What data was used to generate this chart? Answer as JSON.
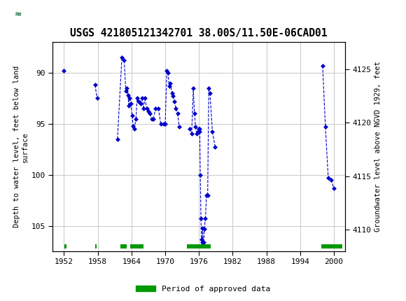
{
  "title": "USGS 421805121342701 38.00S/11.50E-06CAD01",
  "ylabel_left": "Depth to water level, feet below land\nsurface",
  "ylabel_right": "Groundwater level above NGVD 1929, feet",
  "xlim": [
    1950,
    2002
  ],
  "ylim_left": [
    107.5,
    87.0
  ],
  "ylim_right": [
    4108.0,
    4127.5
  ],
  "xticks": [
    1952,
    1958,
    1964,
    1970,
    1976,
    1982,
    1988,
    1994,
    2000
  ],
  "yticks_left": [
    90,
    95,
    100,
    105
  ],
  "yticks_right": [
    4125,
    4120,
    4115,
    4110
  ],
  "data_color": "#0000cc",
  "header_bg": "#006633",
  "plot_bg": "#ffffff",
  "grid_color": "#c8c8c8",
  "legend_label": "Period of approved data",
  "legend_color": "#009900",
  "connect_threshold": 1.2,
  "data_points": [
    [
      1952.0,
      89.8
    ],
    [
      1957.5,
      91.2
    ],
    [
      1957.9,
      92.5
    ],
    [
      1961.5,
      96.5
    ],
    [
      1962.3,
      88.5
    ],
    [
      1962.7,
      88.8
    ],
    [
      1963.0,
      91.8
    ],
    [
      1963.2,
      91.5
    ],
    [
      1963.4,
      92.2
    ],
    [
      1963.5,
      93.2
    ],
    [
      1963.7,
      92.5
    ],
    [
      1963.9,
      93.0
    ],
    [
      1964.1,
      94.2
    ],
    [
      1964.3,
      95.2
    ],
    [
      1964.5,
      95.5
    ],
    [
      1964.8,
      94.5
    ],
    [
      1965.0,
      92.5
    ],
    [
      1965.3,
      92.8
    ],
    [
      1965.6,
      93.0
    ],
    [
      1965.9,
      92.5
    ],
    [
      1966.1,
      93.5
    ],
    [
      1966.4,
      92.5
    ],
    [
      1966.7,
      93.5
    ],
    [
      1967.0,
      93.8
    ],
    [
      1967.3,
      94.0
    ],
    [
      1967.6,
      94.5
    ],
    [
      1967.9,
      94.5
    ],
    [
      1968.3,
      93.5
    ],
    [
      1968.8,
      93.5
    ],
    [
      1969.2,
      95.0
    ],
    [
      1969.7,
      95.0
    ],
    [
      1970.0,
      95.0
    ],
    [
      1970.3,
      89.8
    ],
    [
      1970.5,
      90.0
    ],
    [
      1970.7,
      91.3
    ],
    [
      1970.9,
      91.0
    ],
    [
      1971.2,
      92.0
    ],
    [
      1971.4,
      92.3
    ],
    [
      1971.6,
      92.8
    ],
    [
      1971.9,
      93.5
    ],
    [
      1972.2,
      94.0
    ],
    [
      1972.5,
      95.3
    ],
    [
      1974.3,
      95.5
    ],
    [
      1974.7,
      96.0
    ],
    [
      1975.0,
      91.5
    ],
    [
      1975.2,
      94.0
    ],
    [
      1975.4,
      95.3
    ],
    [
      1975.6,
      96.0
    ],
    [
      1975.8,
      95.8
    ],
    [
      1975.95,
      95.5
    ],
    [
      1976.05,
      95.5
    ],
    [
      1976.15,
      95.8
    ],
    [
      1976.25,
      100.0
    ],
    [
      1976.35,
      104.3
    ],
    [
      1976.45,
      106.3
    ],
    [
      1976.55,
      106.6
    ],
    [
      1976.65,
      105.2
    ],
    [
      1976.75,
      106.8
    ],
    [
      1976.85,
      106.6
    ],
    [
      1976.95,
      105.3
    ],
    [
      1977.15,
      104.3
    ],
    [
      1977.35,
      102.0
    ],
    [
      1977.55,
      102.0
    ],
    [
      1977.75,
      91.5
    ],
    [
      1977.95,
      92.0
    ],
    [
      1978.4,
      95.8
    ],
    [
      1978.9,
      97.3
    ],
    [
      1998.0,
      89.3
    ],
    [
      1998.5,
      95.3
    ],
    [
      1999.0,
      100.3
    ],
    [
      1999.5,
      100.5
    ],
    [
      2000.0,
      101.3
    ]
  ],
  "approved_bars": [
    [
      1952.1,
      1952.5
    ],
    [
      1957.6,
      1957.85
    ],
    [
      1962.0,
      1963.15
    ],
    [
      1963.8,
      1966.15
    ],
    [
      1973.9,
      1978.15
    ],
    [
      1997.8,
      2001.5
    ]
  ]
}
